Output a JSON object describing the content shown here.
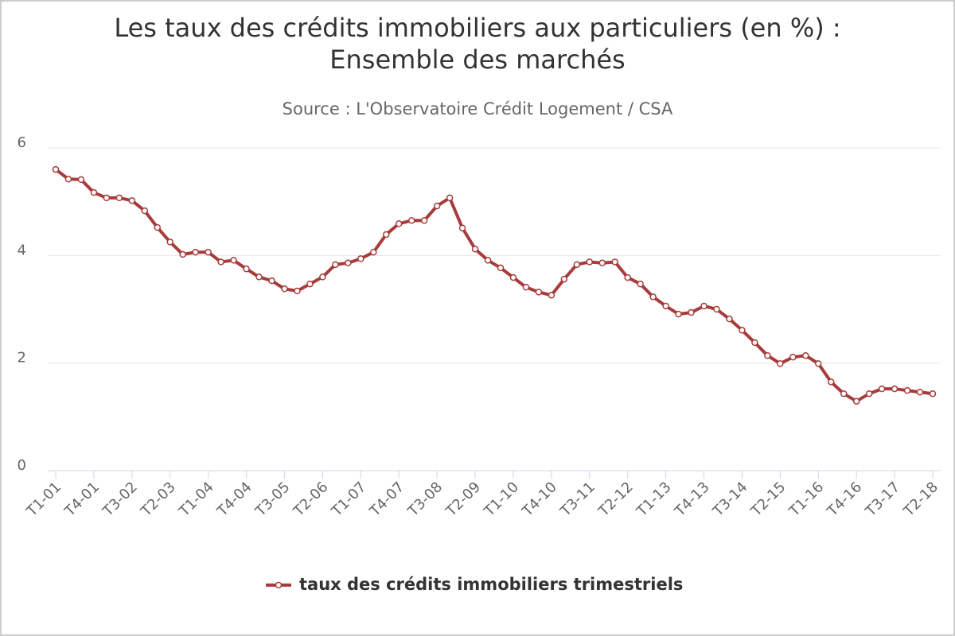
{
  "chart_data": {
    "type": "line",
    "title": [
      "Les taux des crédits immobiliers aux particuliers (en %) :",
      "Ensemble des marchés"
    ],
    "subtitle": "Source : L'Observatoire Crédit Logement / CSA",
    "categories": [
      "T1-01",
      null,
      null,
      "T4-01",
      null,
      null,
      "T3-02",
      null,
      null,
      "T2-03",
      null,
      null,
      "T1-04",
      null,
      null,
      "T4-04",
      null,
      null,
      "T3-05",
      null,
      null,
      "T2-06",
      null,
      null,
      "T1-07",
      null,
      null,
      "T4-07",
      null,
      null,
      "T3-08",
      null,
      null,
      "T2-09",
      null,
      null,
      "T1-10",
      null,
      null,
      "T4-10",
      null,
      null,
      "T3-11",
      null,
      null,
      "T2-12",
      null,
      null,
      "T1-13",
      null,
      null,
      "T4-13",
      null,
      null,
      "T3-14",
      null,
      null,
      "T2-15",
      null,
      null,
      "T1-16",
      null,
      null,
      "T4-16",
      null,
      null,
      "T3-17",
      null,
      null,
      "T2-18"
    ],
    "series": [
      {
        "name": "taux des crédits immobiliers trimestriels",
        "color": "#a83b3b",
        "values": [
          5.6,
          5.42,
          5.41,
          5.17,
          5.07,
          5.07,
          5.02,
          4.83,
          4.52,
          4.25,
          4.02,
          4.06,
          4.06,
          3.88,
          3.91,
          3.75,
          3.6,
          3.53,
          3.38,
          3.34,
          3.47,
          3.6,
          3.83,
          3.86,
          3.94,
          4.06,
          4.39,
          4.59,
          4.65,
          4.65,
          4.92,
          5.07,
          4.51,
          4.12,
          3.91,
          3.77,
          3.59,
          3.41,
          3.32,
          3.26,
          3.56,
          3.83,
          3.88,
          3.86,
          3.88,
          3.59,
          3.47,
          3.23,
          3.06,
          2.91,
          2.94,
          3.06,
          3.0,
          2.82,
          2.61,
          2.38,
          2.14,
          1.99,
          2.11,
          2.14,
          1.99,
          1.65,
          1.43,
          1.29,
          1.43,
          1.52,
          1.52,
          1.49,
          1.46,
          1.43
        ]
      }
    ],
    "ylim": [
      0,
      6
    ],
    "yticks": [
      0,
      2,
      4,
      6
    ],
    "grid": true
  }
}
